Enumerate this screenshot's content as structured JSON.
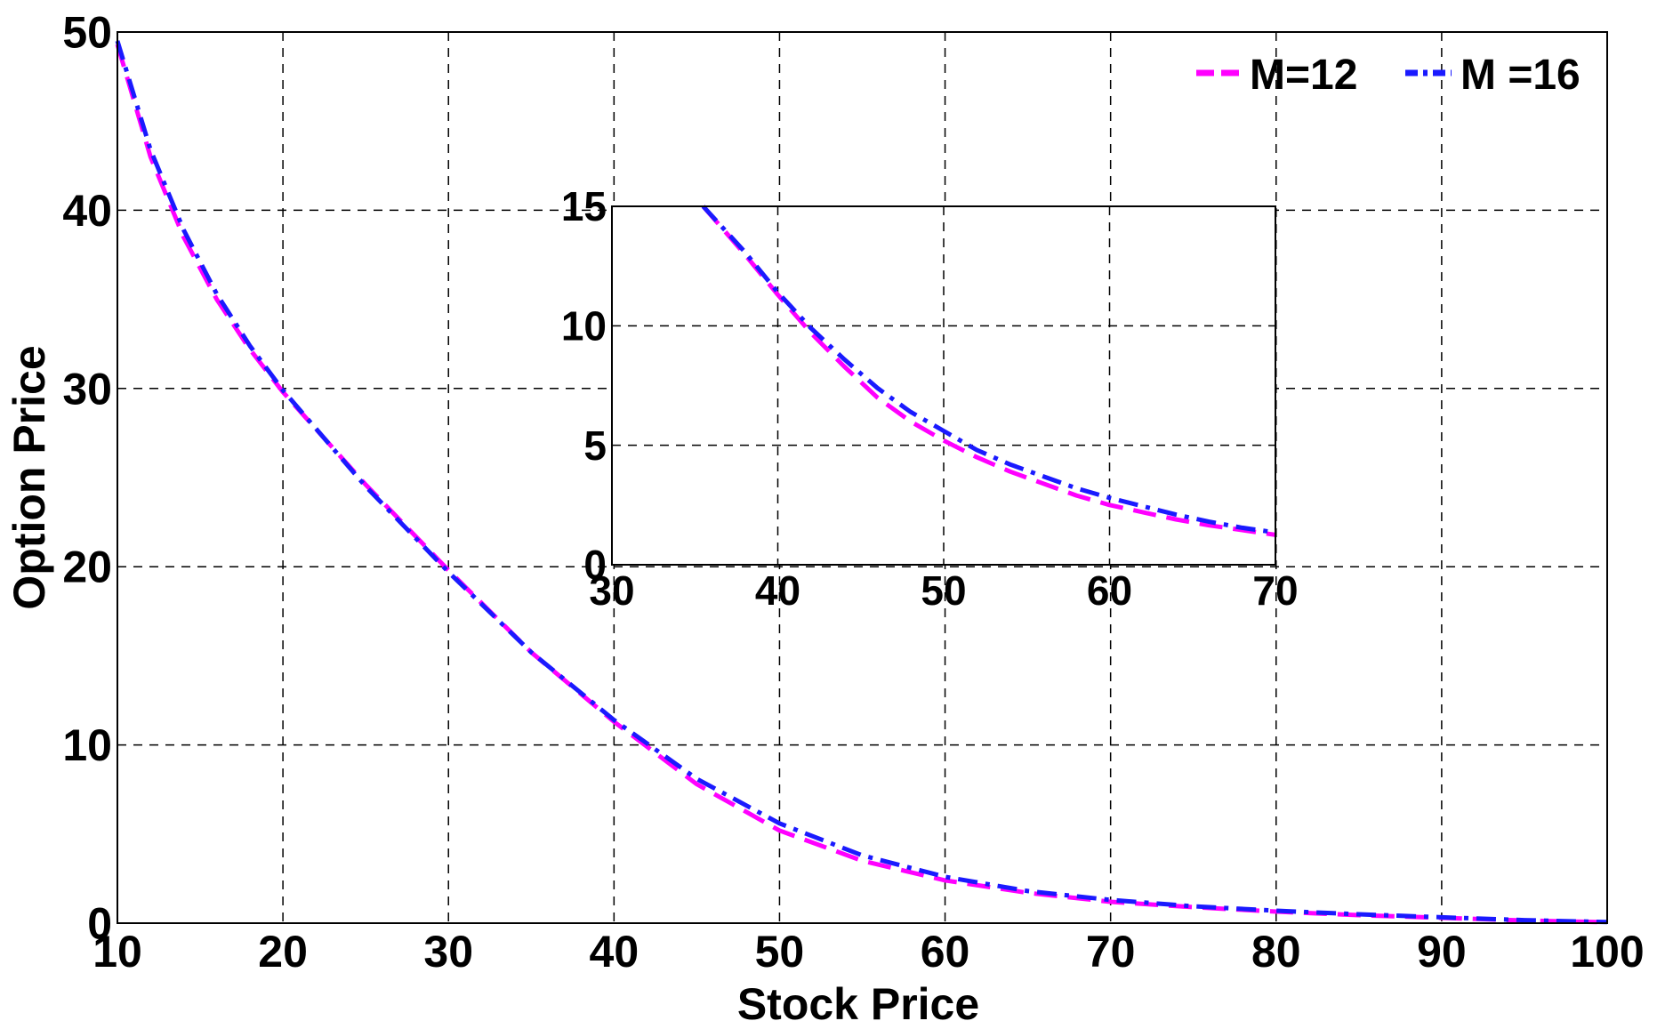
{
  "chart_data": [
    {
      "type": "line",
      "title": "",
      "xlabel": "Stock Price",
      "ylabel": "Option Price",
      "xlim": [
        10,
        100
      ],
      "ylim": [
        0,
        50
      ],
      "x_ticks": [
        10,
        20,
        30,
        40,
        50,
        60,
        70,
        80,
        90,
        100
      ],
      "y_ticks": [
        0,
        10,
        20,
        30,
        40,
        50
      ],
      "grid": true,
      "legend": "top-right",
      "series": [
        {
          "name": "M=12",
          "color": "#ff00ff",
          "style": "dashed",
          "x": [
            10,
            12,
            14,
            16,
            18,
            20,
            25,
            30,
            35,
            40,
            45,
            50,
            55,
            60,
            65,
            70,
            75,
            80,
            85,
            90,
            95,
            100
          ],
          "y": [
            49.3,
            43.0,
            38.5,
            35.0,
            32.2,
            29.8,
            24.6,
            19.8,
            15.2,
            11.3,
            7.8,
            5.2,
            3.5,
            2.4,
            1.7,
            1.2,
            0.9,
            0.65,
            0.45,
            0.3,
            0.15,
            0.05
          ]
        },
        {
          "name": "M =16",
          "color": "#1a1aff",
          "style": "dashdot",
          "x": [
            10,
            12,
            14,
            16,
            18,
            20,
            25,
            30,
            35,
            40,
            45,
            50,
            55,
            60,
            65,
            70,
            75,
            80,
            85,
            90,
            95,
            100
          ],
          "y": [
            49.5,
            43.4,
            38.9,
            35.3,
            32.4,
            29.9,
            24.5,
            19.7,
            15.2,
            11.4,
            8.1,
            5.6,
            3.8,
            2.6,
            1.8,
            1.3,
            0.95,
            0.7,
            0.5,
            0.33,
            0.17,
            0.06
          ]
        }
      ]
    },
    {
      "type": "line",
      "title": "",
      "xlabel": "",
      "ylabel": "",
      "xlim": [
        30,
        70
      ],
      "ylim": [
        0,
        15
      ],
      "x_ticks": [
        30,
        40,
        50,
        60,
        70
      ],
      "y_ticks": [
        0,
        5,
        10,
        15
      ],
      "grid": true,
      "series": [
        {
          "color": "#ff00ff",
          "style": "dashed",
          "x": [
            35.5,
            38,
            40,
            42,
            44,
            46,
            48,
            50,
            52,
            54,
            56,
            58,
            60,
            62,
            64,
            66,
            68,
            70
          ],
          "y": [
            15.0,
            13.0,
            11.3,
            9.7,
            8.3,
            7.0,
            6.0,
            5.2,
            4.5,
            3.9,
            3.4,
            2.9,
            2.5,
            2.2,
            1.9,
            1.65,
            1.45,
            1.25
          ]
        },
        {
          "color": "#1a1aff",
          "style": "dashdot",
          "x": [
            35.5,
            38,
            40,
            42,
            44,
            46,
            48,
            50,
            52,
            54,
            56,
            58,
            60,
            62,
            64,
            66,
            68,
            70
          ],
          "y": [
            15.0,
            13.1,
            11.4,
            9.9,
            8.6,
            7.4,
            6.4,
            5.6,
            4.8,
            4.2,
            3.7,
            3.2,
            2.8,
            2.45,
            2.1,
            1.8,
            1.55,
            1.35
          ]
        }
      ]
    }
  ]
}
